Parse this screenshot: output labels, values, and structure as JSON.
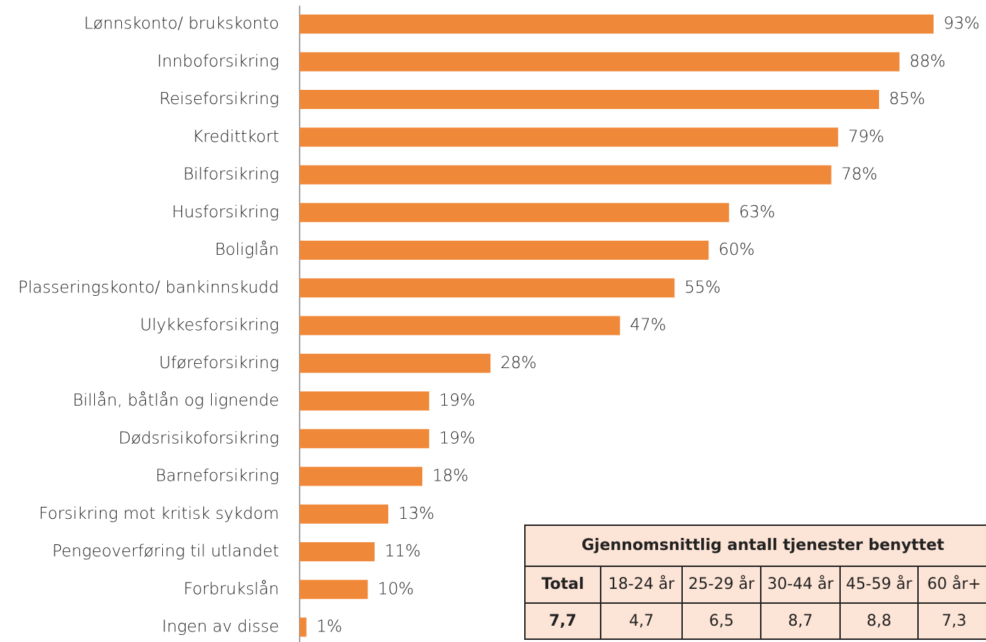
{
  "chart_data": {
    "type": "barh",
    "color": "#f0883a",
    "categories": [
      "Lønnskonto/ brukskonto",
      "Innboforsikring",
      "Reiseforsikring",
      "Kredittkort",
      "Bilforsikring",
      "Husforsikring",
      "Boliglån",
      "Plasseringskonto/ bankinnskudd",
      "Ulykkesforsikring",
      "Uføreforsikring",
      "Billån, båtlån og lignende",
      "Dødsrisikoforsikring",
      "Barneforsikring",
      "Forsikring mot kritisk sykdom",
      "Pengeoverføring til utlandet",
      "Forbrukslån",
      "Ingen av disse"
    ],
    "values": [
      93,
      88,
      85,
      79,
      78,
      63,
      60,
      55,
      47,
      28,
      19,
      19,
      18,
      13,
      11,
      10,
      1
    ],
    "value_labels": [
      "93%",
      "88%",
      "85%",
      "79%",
      "78%",
      "63%",
      "60%",
      "55%",
      "47%",
      "28%",
      "19%",
      "19%",
      "18%",
      "13%",
      "11%",
      "10%",
      "1%"
    ]
  },
  "table": {
    "title": "Gjennomsnittlig antall tjenester benyttet",
    "header": [
      "Total",
      "18-24 år",
      "25-29 år",
      "30-44 år",
      "45-59 år",
      "60 år+"
    ],
    "rows": [
      [
        "7,7",
        "4,7",
        "6,5",
        "8,7",
        "8,8",
        "7,3"
      ]
    ]
  }
}
